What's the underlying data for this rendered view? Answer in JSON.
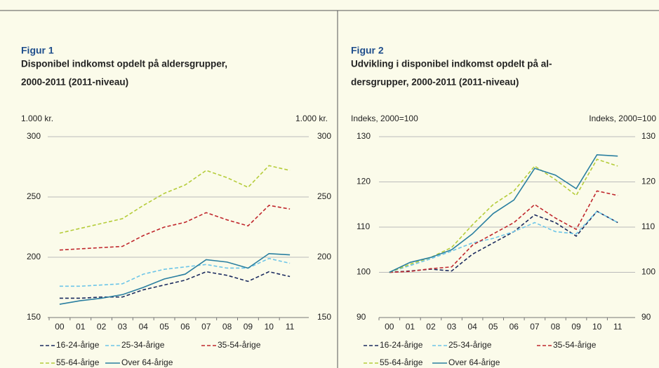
{
  "chart_data": [
    {
      "type": "line",
      "figure_label": "Figur 1",
      "title": [
        "Disponibel indkomst opdelt på aldersgrupper,",
        "2000-2011 (2011-niveau)"
      ],
      "ylabel": "1.000 kr.",
      "y2label": "1.000 kr.",
      "categories": [
        "00",
        "01",
        "02",
        "03",
        "04",
        "05",
        "06",
        "07",
        "08",
        "09",
        "10",
        "11"
      ],
      "ylim": [
        150,
        300
      ],
      "yticks": [
        150,
        200,
        250,
        300
      ],
      "y2lim": [
        150,
        300
      ],
      "y2ticks": [
        150,
        200,
        250,
        300
      ],
      "grid": true,
      "series": [
        {
          "name": "16-24-årige",
          "color": "#1a2a5e",
          "dash": true,
          "values": [
            166,
            166,
            167,
            167,
            173,
            177,
            181,
            188,
            185,
            180,
            188,
            184
          ]
        },
        {
          "name": "25-34-årige",
          "color": "#6cc5e8",
          "dash": true,
          "values": [
            176,
            176,
            177,
            178,
            186,
            190,
            192,
            194,
            191,
            191,
            199,
            195
          ]
        },
        {
          "name": "35-54-årige",
          "color": "#c0272d",
          "dash": true,
          "values": [
            206,
            207,
            208,
            209,
            218,
            225,
            229,
            237,
            231,
            226,
            243,
            240
          ]
        },
        {
          "name": "55-64-årige",
          "color": "#b5cc3a",
          "dash": true,
          "values": [
            220,
            224,
            228,
            232,
            243,
            253,
            260,
            272,
            266,
            258,
            276,
            272
          ]
        },
        {
          "name": "Over 64-årige",
          "color": "#2a7fa0",
          "dash": false,
          "values": [
            161,
            164,
            166,
            169,
            175,
            182,
            186,
            198,
            196,
            191,
            203,
            202
          ]
        }
      ]
    },
    {
      "type": "line",
      "figure_label": "Figur 2",
      "title": [
        "Udvikling i disponibel indkomst opdelt på al-",
        "dersgrupper, 2000-2011 (2011-niveau)"
      ],
      "ylabel": "Indeks, 2000=100",
      "y2label": "Indeks, 2000=100",
      "categories": [
        "00",
        "01",
        "02",
        "03",
        "04",
        "05",
        "06",
        "07",
        "08",
        "09",
        "10",
        "11"
      ],
      "ylim": [
        90,
        130
      ],
      "yticks": [
        90,
        100,
        110,
        120,
        130
      ],
      "y2lim": [
        90,
        130
      ],
      "y2ticks": [
        90,
        100,
        110,
        120,
        130
      ],
      "grid": true,
      "series": [
        {
          "name": "16-24-årige",
          "color": "#1a2a5e",
          "dash": true,
          "values": [
            100,
            100.3,
            100.7,
            100.3,
            104,
            106.5,
            109,
            112.7,
            111,
            108,
            113.5,
            111
          ]
        },
        {
          "name": "25-34-årige",
          "color": "#6cc5e8",
          "dash": true,
          "values": [
            100,
            101.5,
            103,
            104.7,
            106.5,
            107.5,
            109,
            111,
            109,
            108.5,
            113.5,
            111
          ]
        },
        {
          "name": "35-54-årige",
          "color": "#c0272d",
          "dash": true,
          "values": [
            100,
            100.2,
            100.8,
            101.2,
            106,
            108.5,
            111,
            115,
            112,
            109.5,
            118,
            117
          ]
        },
        {
          "name": "55-64-årige",
          "color": "#b5cc3a",
          "dash": true,
          "values": [
            100,
            101.8,
            103.3,
            105.5,
            110.5,
            115,
            118,
            123.5,
            120.5,
            117,
            125,
            123.5
          ]
        },
        {
          "name": "Over 64-årige",
          "color": "#2a7fa0",
          "dash": false,
          "values": [
            100,
            102.2,
            103.3,
            105,
            108.5,
            113,
            116,
            123,
            121.5,
            118.5,
            126,
            125.7
          ]
        }
      ]
    }
  ]
}
